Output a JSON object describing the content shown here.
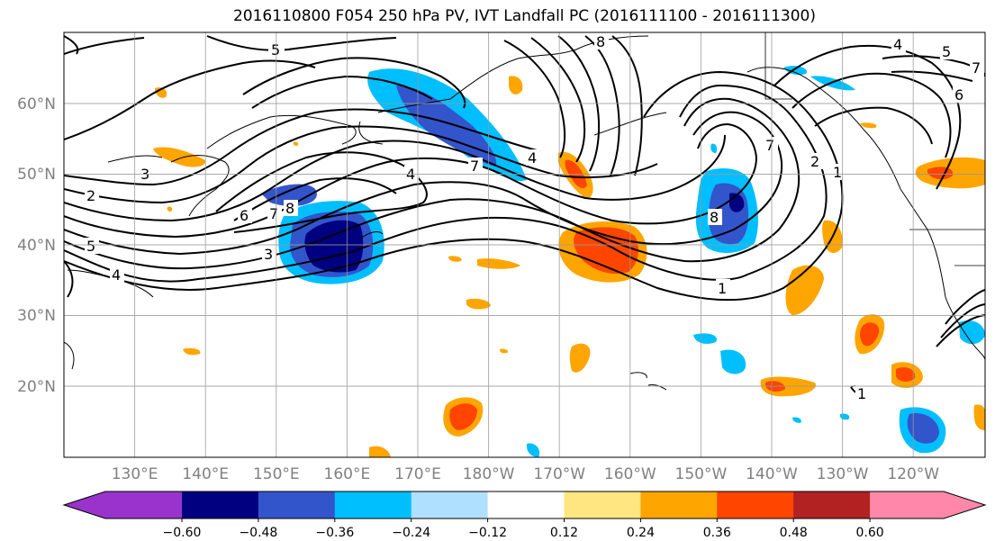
{
  "title": "2016110800 F054 250 hPa PV, IVT Landfall PC (2016111100 - 2016111300)",
  "lat_labels": [
    "60°N",
    "50°N",
    "40°N",
    "30°N",
    "20°N"
  ],
  "lon_labels": [
    "130°E",
    "140°E",
    "150°E",
    "160°E",
    "170°E",
    "180°W",
    "170°W",
    "160°W",
    "150°W",
    "140°W",
    "130°W",
    "120°W"
  ],
  "colorbar": {
    "labels": [
      "−0.60",
      "−0.48",
      "−0.36",
      "−0.24",
      "−0.12",
      "0.12",
      "0.24",
      "0.36",
      "0.48",
      "0.60"
    ],
    "colors": [
      "#9933cc",
      "#000080",
      "#3355cc",
      "#00bfff",
      "#b0e0ff",
      "#ffffff",
      "#ffe680",
      "#ffa500",
      "#ff4500",
      "#b22222",
      "#ff88aa"
    ]
  },
  "contour_labels": [
    {
      "text": "5"
    },
    {
      "text": "8"
    },
    {
      "text": "4"
    },
    {
      "text": "5"
    },
    {
      "text": "7"
    },
    {
      "text": "6"
    },
    {
      "text": "3"
    },
    {
      "text": "2"
    },
    {
      "text": "5"
    },
    {
      "text": "4"
    },
    {
      "text": "6"
    },
    {
      "text": "7"
    },
    {
      "text": "8"
    },
    {
      "text": "3"
    },
    {
      "text": "4"
    },
    {
      "text": "7"
    },
    {
      "text": "4"
    },
    {
      "text": "8"
    },
    {
      "text": "7"
    },
    {
      "text": "2"
    },
    {
      "text": "1"
    },
    {
      "text": "1"
    },
    {
      "text": "1"
    }
  ]
}
